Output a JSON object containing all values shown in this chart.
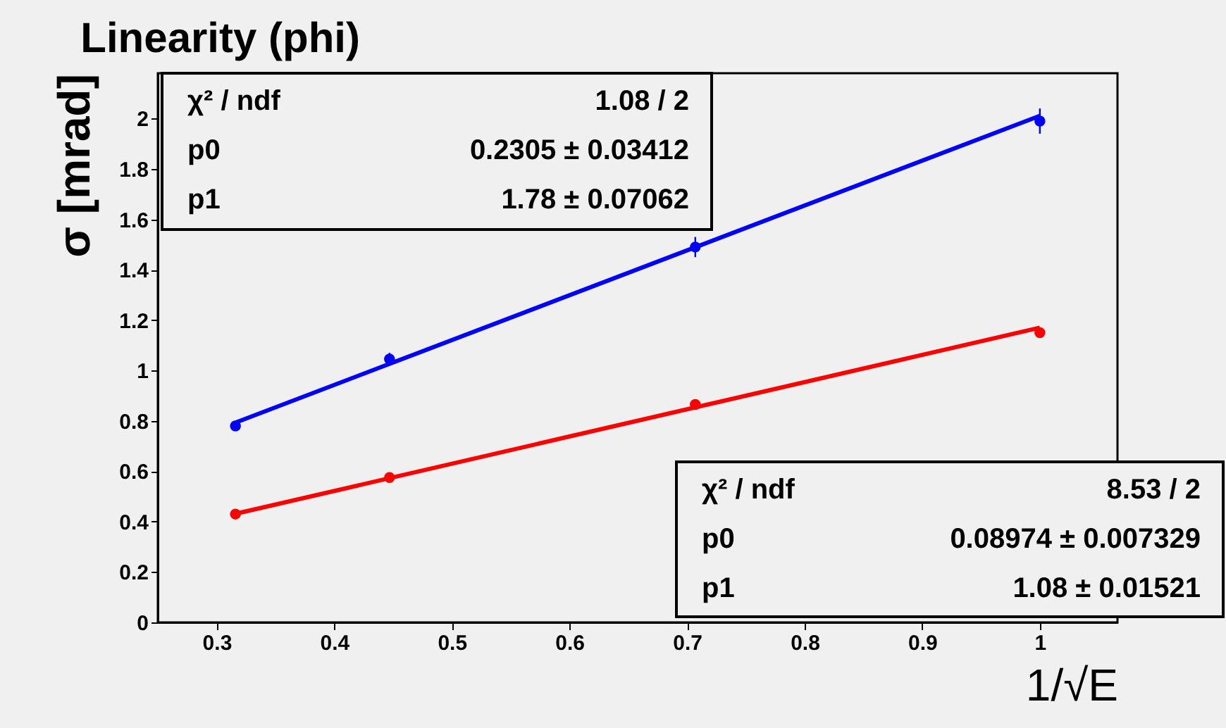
{
  "chart_data": {
    "type": "scatter",
    "title": "Linearity (phi)",
    "xlabel": "1/√E",
    "ylabel": "σ [mrad]",
    "xlim": [
      0.25,
      1.066
    ],
    "ylim": [
      0,
      2.18
    ],
    "xticks": [
      0.3,
      0.4,
      0.5,
      0.6,
      0.7,
      0.8,
      0.9,
      1
    ],
    "yticks": [
      0,
      0.2,
      0.4,
      0.6,
      0.8,
      1,
      1.2,
      1.4,
      1.6,
      1.8,
      2
    ],
    "grid": false,
    "series": [
      {
        "type": "line",
        "color": "#0000ff",
        "x": [
          0.316,
          1.0
        ],
        "values": [
          0.793,
          2.011
        ]
      },
      {
        "type": "line",
        "color": "#ff0000",
        "x": [
          0.316,
          1.0
        ],
        "values": [
          0.431,
          1.17
        ]
      },
      {
        "marker": "circle",
        "color": "#0000ff",
        "x": [
          0.316,
          0.447,
          0.707,
          1.0
        ],
        "values": [
          0.78,
          1.045,
          1.49,
          1.99
        ],
        "errors": [
          0.01,
          0.025,
          0.04,
          0.05
        ]
      },
      {
        "marker": "circle",
        "color": "#ff0000",
        "x": [
          0.316,
          0.447,
          0.707,
          1.0
        ],
        "values": [
          0.43,
          0.575,
          0.865,
          1.15
        ]
      }
    ],
    "annotations": [
      "χ² / ndf",
      "1.08 / 2",
      "p0",
      "0.2305 ± 0.03412",
      "p1",
      "1.78 ± 0.07062",
      "χ² / ndf",
      "8.53 / 2",
      "p0",
      "0.08974 ± 0.007329",
      "p1",
      "1.08 ± 0.01521"
    ]
  }
}
